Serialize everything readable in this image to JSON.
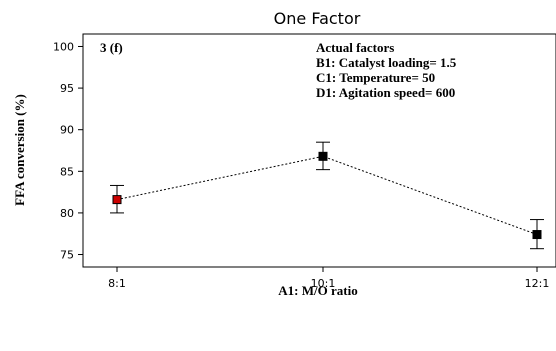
{
  "chart_data": {
    "type": "line",
    "title": "One Factor",
    "panel_label": "3 (f)",
    "xlabel": "A1: M/O ratio",
    "ylabel": "FFA conversion (%)",
    "categories": [
      "8:1",
      "10:1",
      "12:1"
    ],
    "ylim": [
      73.5,
      101.5
    ],
    "yticks": [
      75,
      80,
      85,
      90,
      95,
      100
    ],
    "ytick_labels": [
      "75",
      "80",
      "85",
      "90",
      "95",
      "100"
    ],
    "series": [
      {
        "values": [
          81.6,
          86.8,
          77.4
        ],
        "error_low": [
          80.0,
          85.2,
          75.7
        ],
        "error_high": [
          83.3,
          88.5,
          79.2
        ],
        "marker_colors": [
          "#cc0000",
          "#000000",
          "#000000"
        ]
      }
    ],
    "annotation": {
      "heading": "Actual factors",
      "lines": [
        "B1: Catalyst loading= 1.5",
        "C1: Temperature= 50",
        "D1: Agitation speed= 600"
      ]
    },
    "grid": false,
    "legend": "none"
  }
}
